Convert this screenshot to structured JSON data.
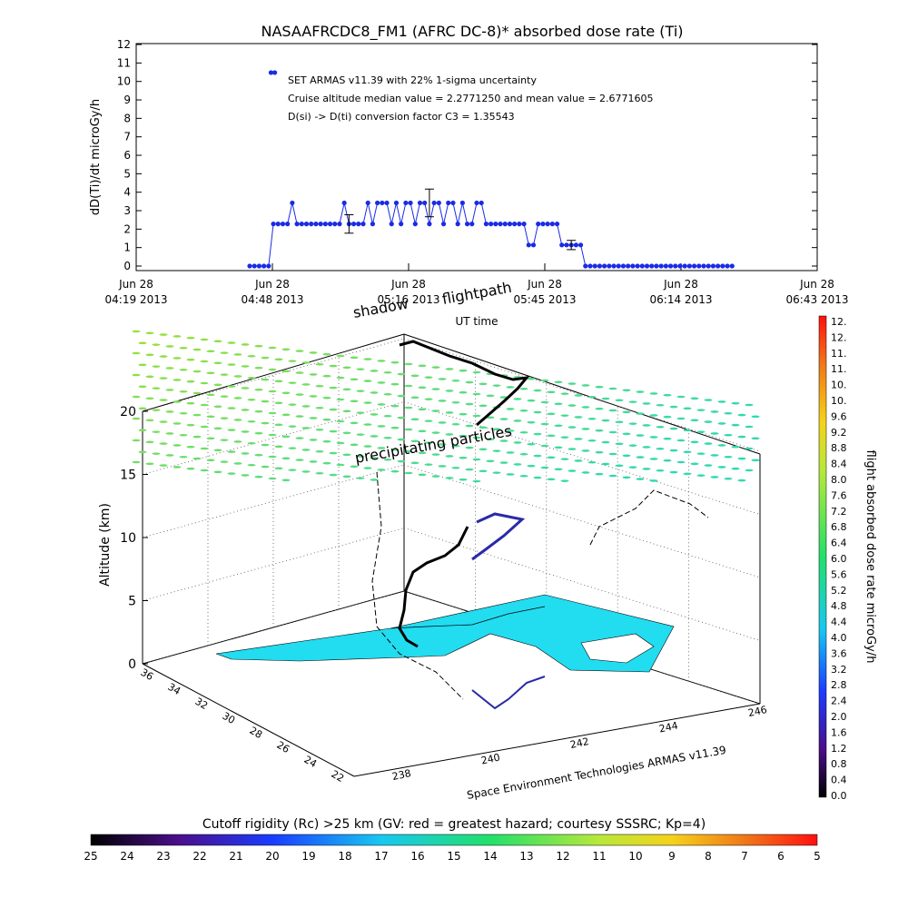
{
  "title": "NASAAFRCDC8_FM1 (AFRC DC-8)* absorbed dose rate (Ti)",
  "top_chart": {
    "ylabel": "dD(Ti)/dt microGy/h",
    "xlabel": "UT time",
    "yticks": [
      "0",
      "1",
      "2",
      "3",
      "4",
      "5",
      "6",
      "7",
      "8",
      "9",
      "10",
      "11",
      "12"
    ],
    "xticks": [
      {
        "day": "Jun 28",
        "time": "04:19 2013"
      },
      {
        "day": "Jun 28",
        "time": "04:48 2013"
      },
      {
        "day": "Jun 28",
        "time": "05:16 2013"
      },
      {
        "day": "Jun 28",
        "time": "05:45 2013"
      },
      {
        "day": "Jun 28",
        "time": "06:14 2013"
      },
      {
        "day": "Jun 28",
        "time": "06:43 2013"
      }
    ],
    "annotations": [
      "SET ARMAS v11.39 with 22% 1-sigma uncertainty",
      "Cruise altitude median value = 2.2771250 and mean value = 2.6771605",
      "D(si) -> D(ti) conversion factor C3 = 1.35543"
    ],
    "color": "#1a2be6"
  },
  "chart_data": [
    {
      "type": "line",
      "title": "NASAAFRCDC8_FM1 (AFRC DC-8)* absorbed dose rate (Ti)",
      "xlabel": "UT time",
      "ylabel": "dD(Ti)/dt microGy/h",
      "x_unit": "minutes after 04:19 UT, Jun 28 2013",
      "xlim": [
        0,
        144
      ],
      "ylim": [
        0,
        12
      ],
      "series": [
        {
          "x": [
            24,
            25,
            26,
            27,
            28,
            29,
            30,
            31,
            32,
            33,
            34,
            35,
            36,
            37,
            38,
            39,
            40,
            41,
            42,
            43,
            44,
            45,
            46,
            47,
            48,
            49,
            50,
            51,
            52,
            53,
            54,
            55,
            56,
            57,
            58,
            59,
            60,
            61,
            62,
            63,
            64,
            65,
            66,
            67,
            68,
            69,
            70,
            71,
            72,
            73,
            74,
            75,
            76,
            77,
            78,
            79,
            80,
            81,
            82,
            83,
            84,
            85,
            86,
            87,
            88,
            89,
            90,
            91,
            92,
            93,
            94,
            95,
            96,
            97,
            98,
            99,
            100,
            101,
            102,
            103,
            104,
            105,
            106,
            107,
            108,
            109,
            110,
            111,
            112,
            113,
            114,
            115,
            116,
            117,
            118,
            119,
            120,
            121,
            122,
            123,
            124,
            125,
            126
          ],
          "y": [
            0,
            0,
            0,
            0,
            0,
            2.28,
            2.28,
            2.28,
            2.28,
            3.42,
            2.28,
            2.28,
            2.28,
            2.28,
            2.28,
            2.28,
            2.28,
            2.28,
            2.28,
            2.28,
            3.42,
            2.28,
            2.28,
            2.28,
            2.28,
            3.42,
            2.28,
            3.42,
            3.42,
            3.42,
            2.28,
            3.42,
            2.28,
            3.42,
            3.42,
            2.28,
            3.42,
            3.42,
            2.28,
            3.42,
            3.42,
            2.28,
            3.42,
            3.42,
            2.28,
            3.42,
            2.28,
            2.28,
            3.42,
            3.42,
            2.28,
            2.28,
            2.28,
            2.28,
            2.28,
            2.28,
            2.28,
            2.28,
            2.28,
            1.14,
            1.14,
            2.28,
            2.28,
            2.28,
            2.28,
            2.28,
            1.14,
            1.14,
            1.14,
            1.14,
            1.14,
            0,
            0,
            0,
            0,
            0,
            0,
            0,
            0,
            0,
            0,
            0,
            0,
            0,
            0,
            0,
            0,
            0,
            0,
            0,
            0,
            0,
            0,
            0,
            0,
            0,
            0,
            0,
            0,
            0,
            0,
            0,
            0
          ]
        },
        {
          "x": [
            28.5,
            29.3
          ],
          "y": [
            10.48,
            10.48
          ]
        }
      ],
      "error_bars": [
        {
          "x": 45,
          "y": 2.28,
          "err": 0.5
        },
        {
          "x": 62,
          "y": 3.42,
          "err": 0.75
        },
        {
          "x": 92,
          "y": 1.14,
          "err": 0.25
        }
      ]
    },
    {
      "type": "scatter",
      "title": "",
      "zlabel": "Altitude (km)",
      "xlabel": "Space Environment Technologies ARMAS v11.39",
      "ztick_labels": [
        "0",
        "5",
        "10",
        "15",
        "20"
      ],
      "lon_tick_labels": [
        "238",
        "240",
        "242",
        "244",
        "246"
      ],
      "lat_tick_labels": [
        "22",
        "24",
        "26",
        "28",
        "30",
        "32",
        "34",
        "36"
      ],
      "annotations": [
        "shadow",
        "flightpath",
        "precipitating particles"
      ]
    }
  ],
  "colorbar_right": {
    "label": "flight absorbed dose rate microGy/h",
    "ticks": [
      "0.0",
      "0.4",
      "0.8",
      "1.2",
      "1.6",
      "2.0",
      "2.4",
      "2.8",
      "3.2",
      "3.6",
      "4.0",
      "4.4",
      "4.8",
      "5.2",
      "5.6",
      "6.0",
      "6.4",
      "6.8",
      "7.2",
      "7.6",
      "8.0",
      "8.4",
      "8.8",
      "9.2",
      "9.6",
      "10.",
      "10.",
      "11.",
      "11.",
      "12.",
      "12."
    ]
  },
  "colorbar_bottom": {
    "label": "Cutoff rigidity (Rc) >25 km (GV: red = greatest hazard; courtesy SSSRC; Kp=4)",
    "ticks": [
      "25",
      "24",
      "23",
      "22",
      "21",
      "20",
      "19",
      "18",
      "17",
      "16",
      "15",
      "14",
      "13",
      "12",
      "11",
      "10",
      "9",
      "8",
      "7",
      "6",
      "5"
    ]
  },
  "colors": {
    "flight_path": "#000000",
    "precip_particles": "#3fe08a",
    "surface": "#22dcf0",
    "land": "#ffffff",
    "track_low": "#2a2aa8"
  }
}
